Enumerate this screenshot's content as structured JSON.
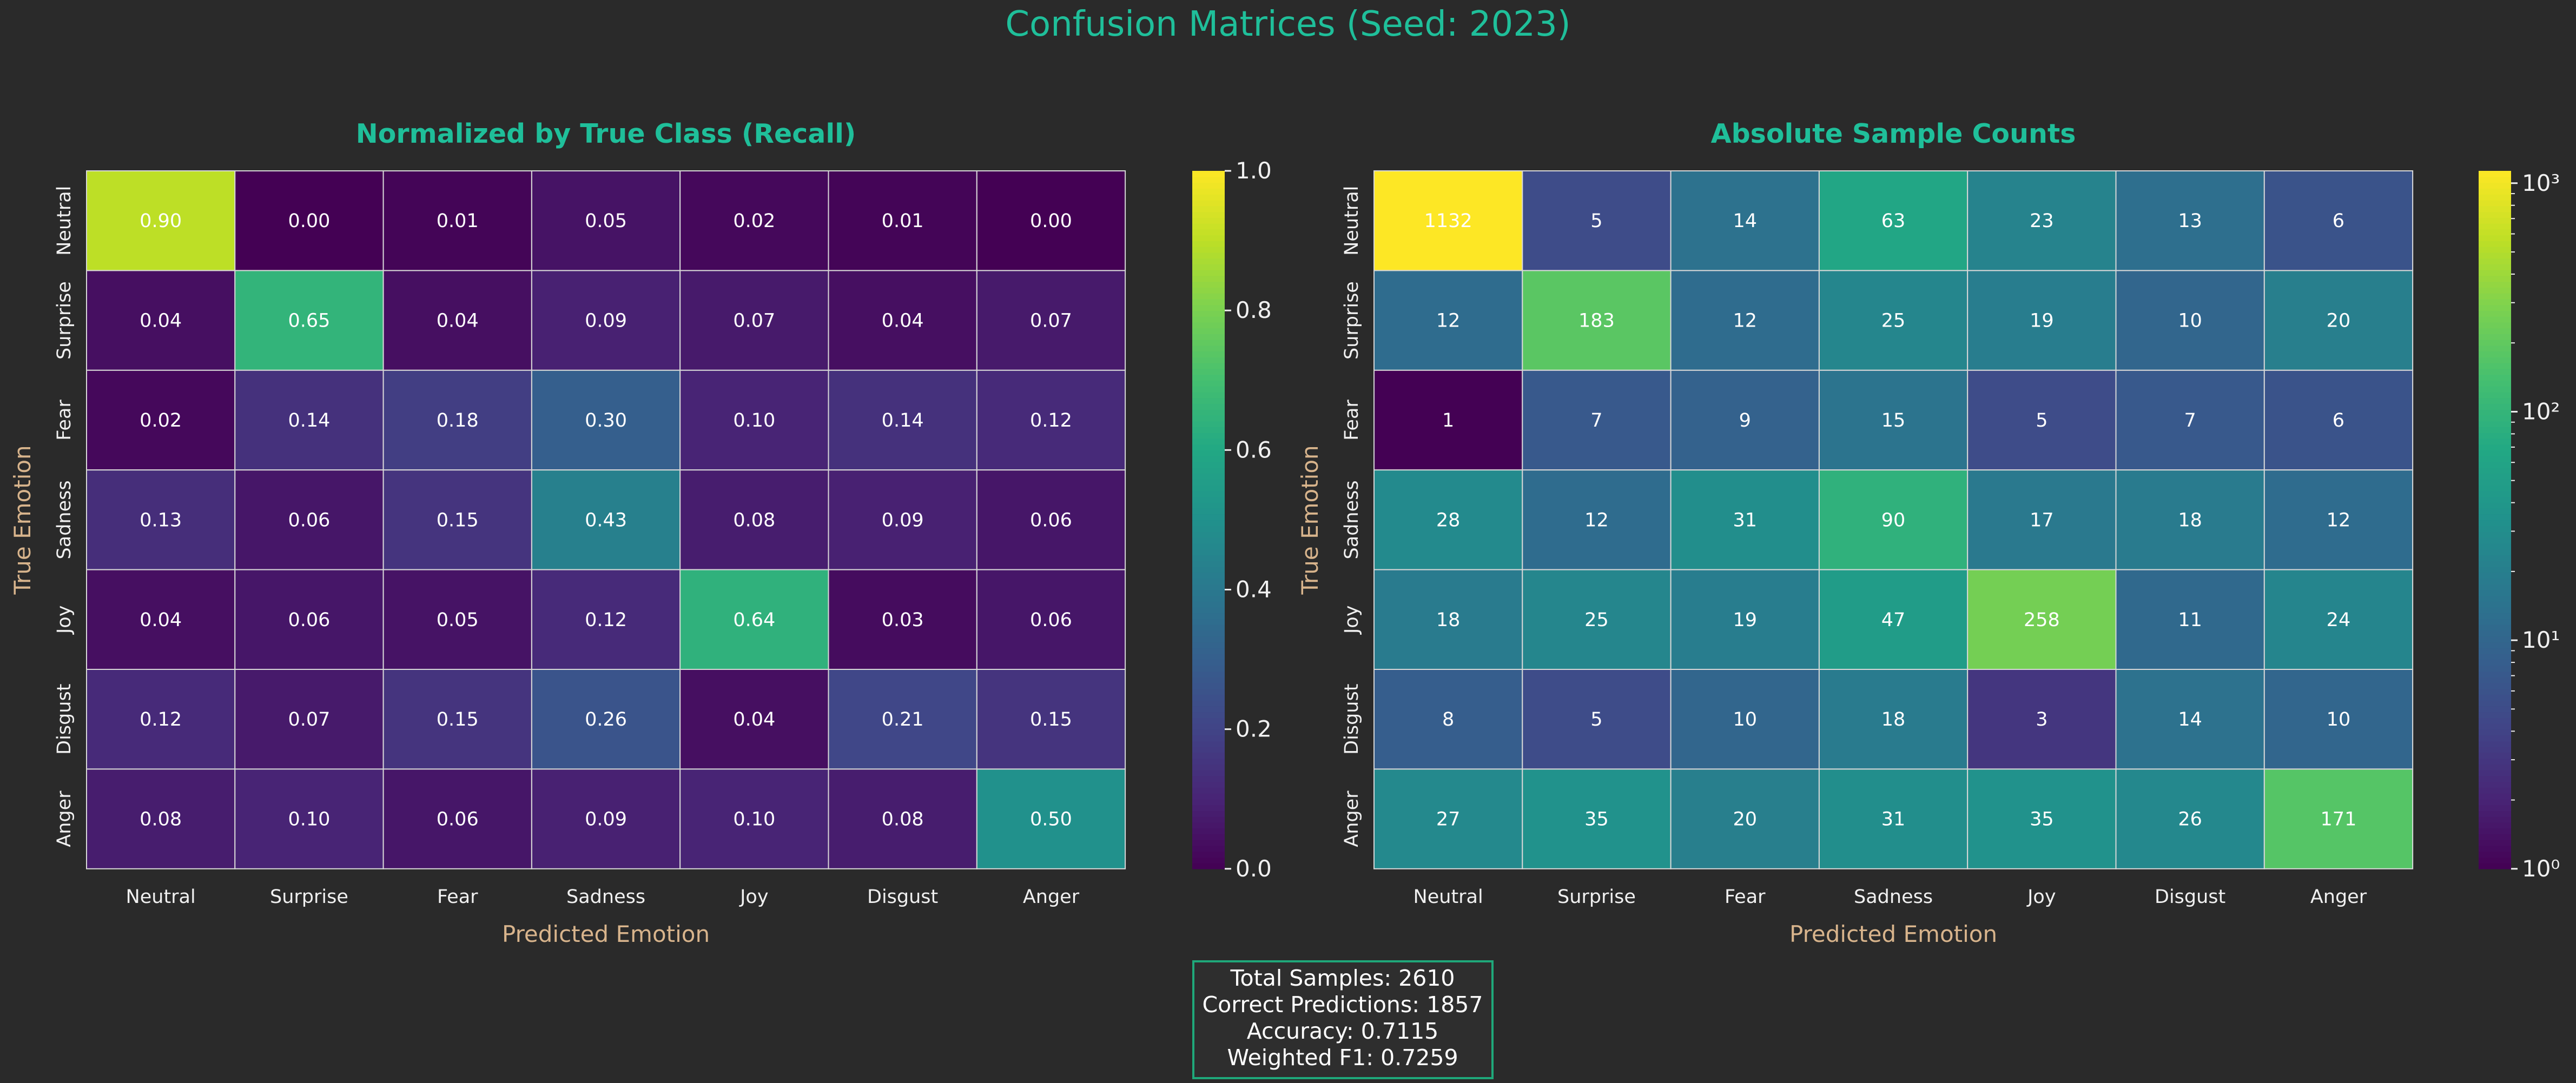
{
  "figure": {
    "suptitle": "Confusion Matrices (Seed: 2023)"
  },
  "colors": {
    "background": "#2a2a2a",
    "title": "#1fbf9a",
    "axis_label": "#d8b48c",
    "tick_text": "#f0f0f0",
    "cell_border": "#d8d8d8",
    "summary_border": "#1fa87a"
  },
  "colormap": "viridis",
  "summary": {
    "lines": [
      "Total Samples: 2610",
      "Correct Predictions: 1857",
      "Accuracy: 0.7115",
      "Weighted F1: 0.7259"
    ]
  },
  "chart_data": [
    {
      "type": "heatmap",
      "title": "Normalized by True Class (Recall)",
      "xlabel": "Predicted Emotion",
      "ylabel": "True Emotion",
      "x_categories": [
        "Neutral",
        "Surprise",
        "Fear",
        "Sadness",
        "Joy",
        "Disgust",
        "Anger"
      ],
      "y_categories": [
        "Neutral",
        "Surprise",
        "Fear",
        "Sadness",
        "Joy",
        "Disgust",
        "Anger"
      ],
      "values": [
        [
          0.9,
          0.0,
          0.01,
          0.05,
          0.02,
          0.01,
          0.0
        ],
        [
          0.04,
          0.65,
          0.04,
          0.09,
          0.07,
          0.04,
          0.07
        ],
        [
          0.02,
          0.14,
          0.18,
          0.3,
          0.1,
          0.14,
          0.12
        ],
        [
          0.13,
          0.06,
          0.15,
          0.43,
          0.08,
          0.09,
          0.06
        ],
        [
          0.04,
          0.06,
          0.05,
          0.12,
          0.64,
          0.03,
          0.06
        ],
        [
          0.12,
          0.07,
          0.15,
          0.26,
          0.04,
          0.21,
          0.15
        ],
        [
          0.08,
          0.1,
          0.06,
          0.09,
          0.1,
          0.08,
          0.5
        ]
      ],
      "value_format": "0.00",
      "color_scale": "linear",
      "vmin": 0.0,
      "vmax": 1.0,
      "colorbar_ticks": [
        "0.0",
        "0.2",
        "0.4",
        "0.6",
        "0.8",
        "1.0"
      ],
      "colorbar_tick_values": [
        0.0,
        0.2,
        0.4,
        0.6,
        0.8,
        1.0
      ]
    },
    {
      "type": "heatmap",
      "title": "Absolute Sample Counts",
      "xlabel": "Predicted Emotion",
      "ylabel": "True Emotion",
      "x_categories": [
        "Neutral",
        "Surprise",
        "Fear",
        "Sadness",
        "Joy",
        "Disgust",
        "Anger"
      ],
      "y_categories": [
        "Neutral",
        "Surprise",
        "Fear",
        "Sadness",
        "Joy",
        "Disgust",
        "Anger"
      ],
      "values": [
        [
          1132,
          5,
          14,
          63,
          23,
          13,
          6
        ],
        [
          12,
          183,
          12,
          25,
          19,
          10,
          20
        ],
        [
          1,
          7,
          9,
          15,
          5,
          7,
          6
        ],
        [
          28,
          12,
          31,
          90,
          17,
          18,
          12
        ],
        [
          18,
          25,
          19,
          47,
          258,
          11,
          24
        ],
        [
          8,
          5,
          10,
          18,
          3,
          14,
          10
        ],
        [
          27,
          35,
          20,
          31,
          35,
          26,
          171
        ]
      ],
      "value_format": "integer",
      "color_scale": "log",
      "vmin": 1,
      "vmax": 1132,
      "colorbar_ticks": [
        "10⁰",
        "10¹",
        "10²",
        "10³"
      ],
      "colorbar_tick_values": [
        1,
        10,
        100,
        1000
      ]
    }
  ]
}
